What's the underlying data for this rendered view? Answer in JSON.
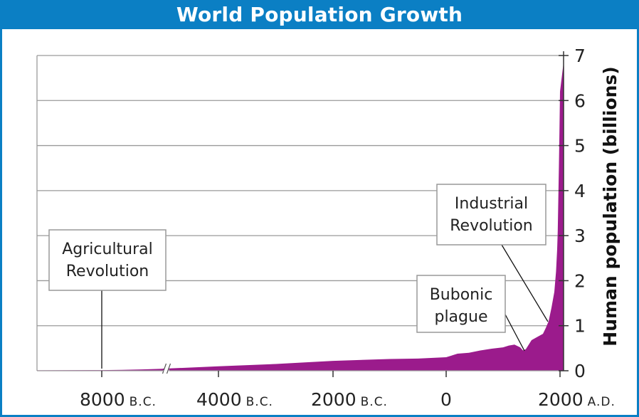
{
  "chart_data": {
    "type": "area",
    "title": "World Population Growth",
    "ylabel": "Human population (billions)",
    "xlabel": "",
    "ylim": [
      0,
      7
    ],
    "yticks": [
      0,
      1,
      2,
      3,
      4,
      5,
      6,
      7
    ],
    "grid": true,
    "color": "#9b1b8c",
    "xticks": [
      {
        "num": "8000",
        "suffix": "B.C.",
        "year": -8000
      },
      {
        "num": "4000",
        "suffix": "B.C.",
        "year": -4000
      },
      {
        "num": "2000",
        "suffix": "B.C.",
        "year": -2000
      },
      {
        "num": "0",
        "suffix": "",
        "year": 0
      },
      {
        "num": "2000",
        "suffix": "A.D.",
        "year": 2000
      }
    ],
    "axis_break_year": -4800,
    "series": [
      {
        "points": [
          [
            -9000,
            0.01
          ],
          [
            -8000,
            0.015
          ],
          [
            -7000,
            0.02
          ],
          [
            -6000,
            0.03
          ],
          [
            -5000,
            0.045
          ],
          [
            -4800,
            0.05
          ],
          [
            -4000,
            0.1
          ],
          [
            -3000,
            0.15
          ],
          [
            -2000,
            0.22
          ],
          [
            -1000,
            0.26
          ],
          [
            -500,
            0.27
          ],
          [
            0,
            0.3
          ],
          [
            200,
            0.38
          ],
          [
            400,
            0.4
          ],
          [
            600,
            0.45
          ],
          [
            800,
            0.49
          ],
          [
            1000,
            0.52
          ],
          [
            1100,
            0.56
          ],
          [
            1200,
            0.58
          ],
          [
            1300,
            0.52
          ],
          [
            1350,
            0.45
          ],
          [
            1400,
            0.48
          ],
          [
            1500,
            0.68
          ],
          [
            1600,
            0.75
          ],
          [
            1700,
            0.82
          ],
          [
            1750,
            0.95
          ],
          [
            1800,
            1.1
          ],
          [
            1850,
            1.4
          ],
          [
            1900,
            1.75
          ],
          [
            1930,
            2.2
          ],
          [
            1950,
            2.7
          ],
          [
            1960,
            3.1
          ],
          [
            1970,
            3.8
          ],
          [
            1980,
            4.5
          ],
          [
            1990,
            5.3
          ],
          [
            2000,
            6.2
          ],
          [
            2010,
            6.85
          ]
        ]
      }
    ],
    "annotations": [
      {
        "id": "agricultural",
        "lines": [
          "Agricultural",
          "Revolution"
        ],
        "year": -8000,
        "value": 0.0
      },
      {
        "id": "industrial",
        "lines": [
          "Industrial",
          "Revolution"
        ],
        "year": 1780,
        "value": 1.0
      },
      {
        "id": "bubonic",
        "lines": [
          "Bubonic",
          "plague"
        ],
        "year": 1350,
        "value": 0.45
      }
    ]
  }
}
